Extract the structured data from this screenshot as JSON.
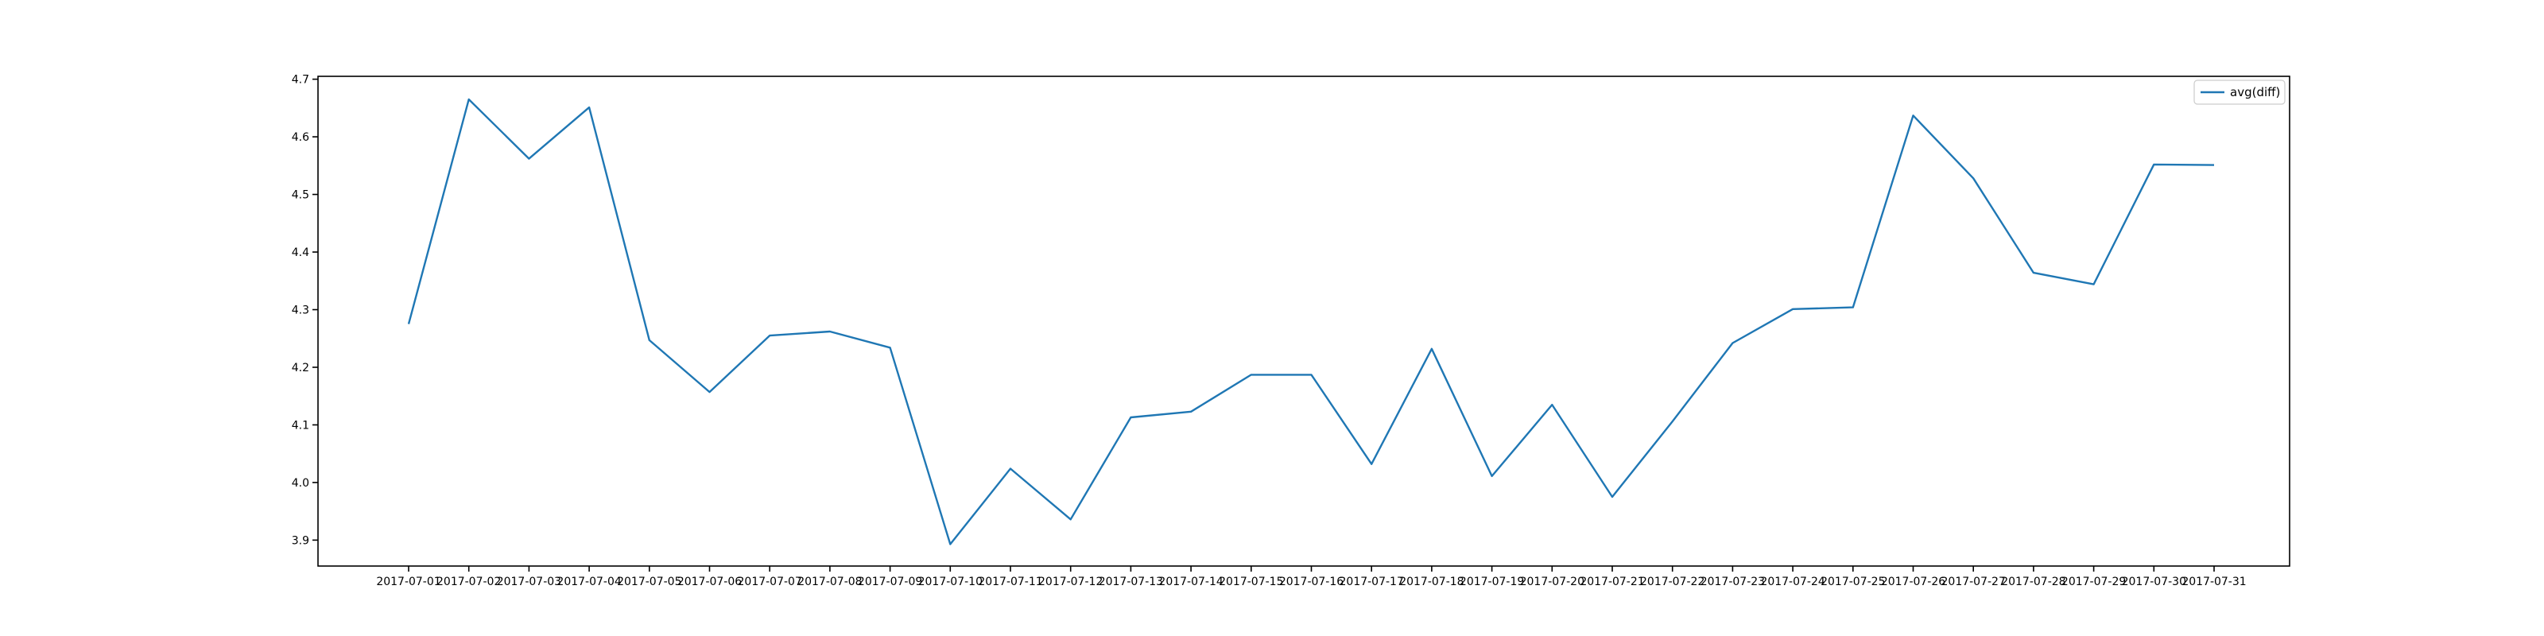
{
  "chart_data": {
    "type": "line",
    "title": "",
    "xlabel": "",
    "ylabel": "",
    "x": [
      "2017-07-01",
      "2017-07-02",
      "2017-07-03",
      "2017-07-04",
      "2017-07-05",
      "2017-07-06",
      "2017-07-07",
      "2017-07-08",
      "2017-07-09",
      "2017-07-10",
      "2017-07-11",
      "2017-07-12",
      "2017-07-13",
      "2017-07-14",
      "2017-07-15",
      "2017-07-16",
      "2017-07-17",
      "2017-07-18",
      "2017-07-19",
      "2017-07-20",
      "2017-07-21",
      "2017-07-22",
      "2017-07-23",
      "2017-07-24",
      "2017-07-25",
      "2017-07-26",
      "2017-07-27",
      "2017-07-28",
      "2017-07-29",
      "2017-07-30",
      "2017-07-31"
    ],
    "yticks": [
      "3.9",
      "4.0",
      "4.1",
      "4.2",
      "4.3",
      "4.4",
      "4.5",
      "4.6",
      "4.7"
    ],
    "ylim": [
      3.855,
      4.705
    ],
    "grid": false,
    "legend_position": "top-right",
    "series": [
      {
        "name": "avg(diff)",
        "color": "#1f77b4",
        "values": [
          4.275,
          4.665,
          4.562,
          4.651,
          4.247,
          4.157,
          4.255,
          4.262,
          4.234,
          3.893,
          4.024,
          3.936,
          4.113,
          4.123,
          4.187,
          4.187,
          4.032,
          4.232,
          4.011,
          4.135,
          3.975,
          4.106,
          4.242,
          4.301,
          4.304,
          4.637,
          4.528,
          4.364,
          4.344,
          4.552,
          4.551
        ]
      }
    ]
  }
}
